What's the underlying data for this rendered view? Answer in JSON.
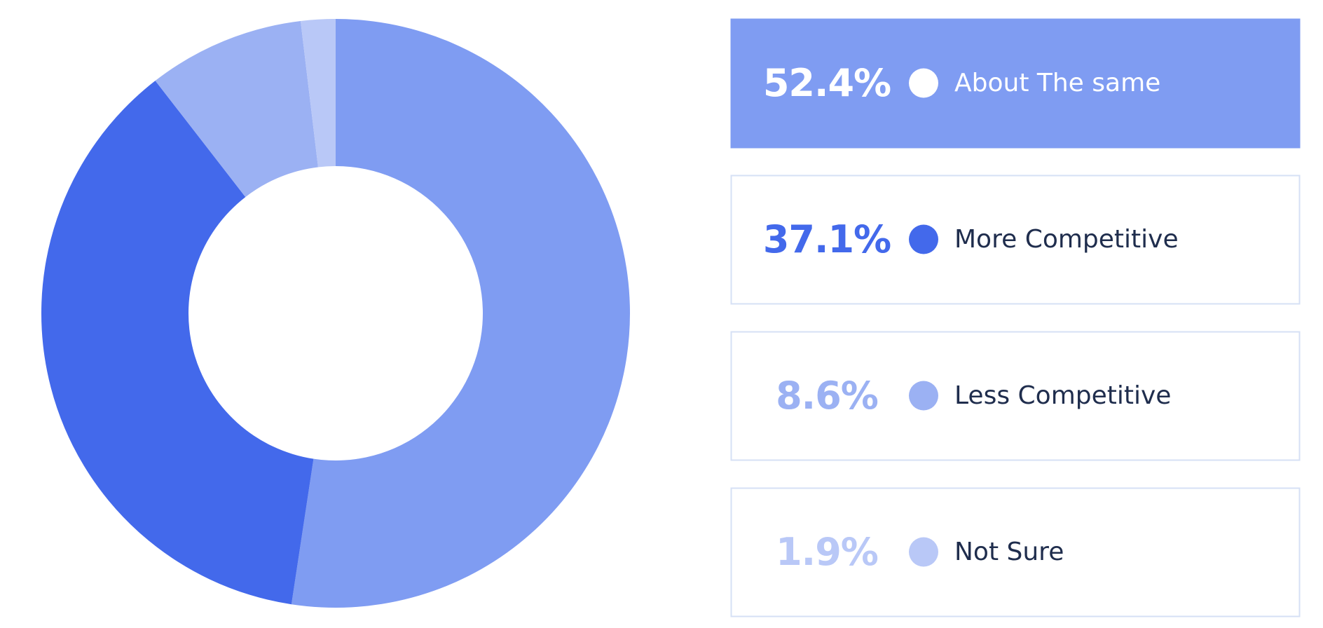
{
  "chart_data": {
    "type": "pie",
    "categories": [
      "About The same",
      "More Competitive",
      "Less Competitive",
      "Not Sure"
    ],
    "values": [
      52.4,
      37.1,
      8.6,
      1.9
    ],
    "value_labels": [
      "52.4%",
      "37.1%",
      "8.6%",
      "1.9%"
    ],
    "colors": [
      "#7f9cf2",
      "#4369eb",
      "#9bb1f3",
      "#b9c8f7"
    ]
  }
}
